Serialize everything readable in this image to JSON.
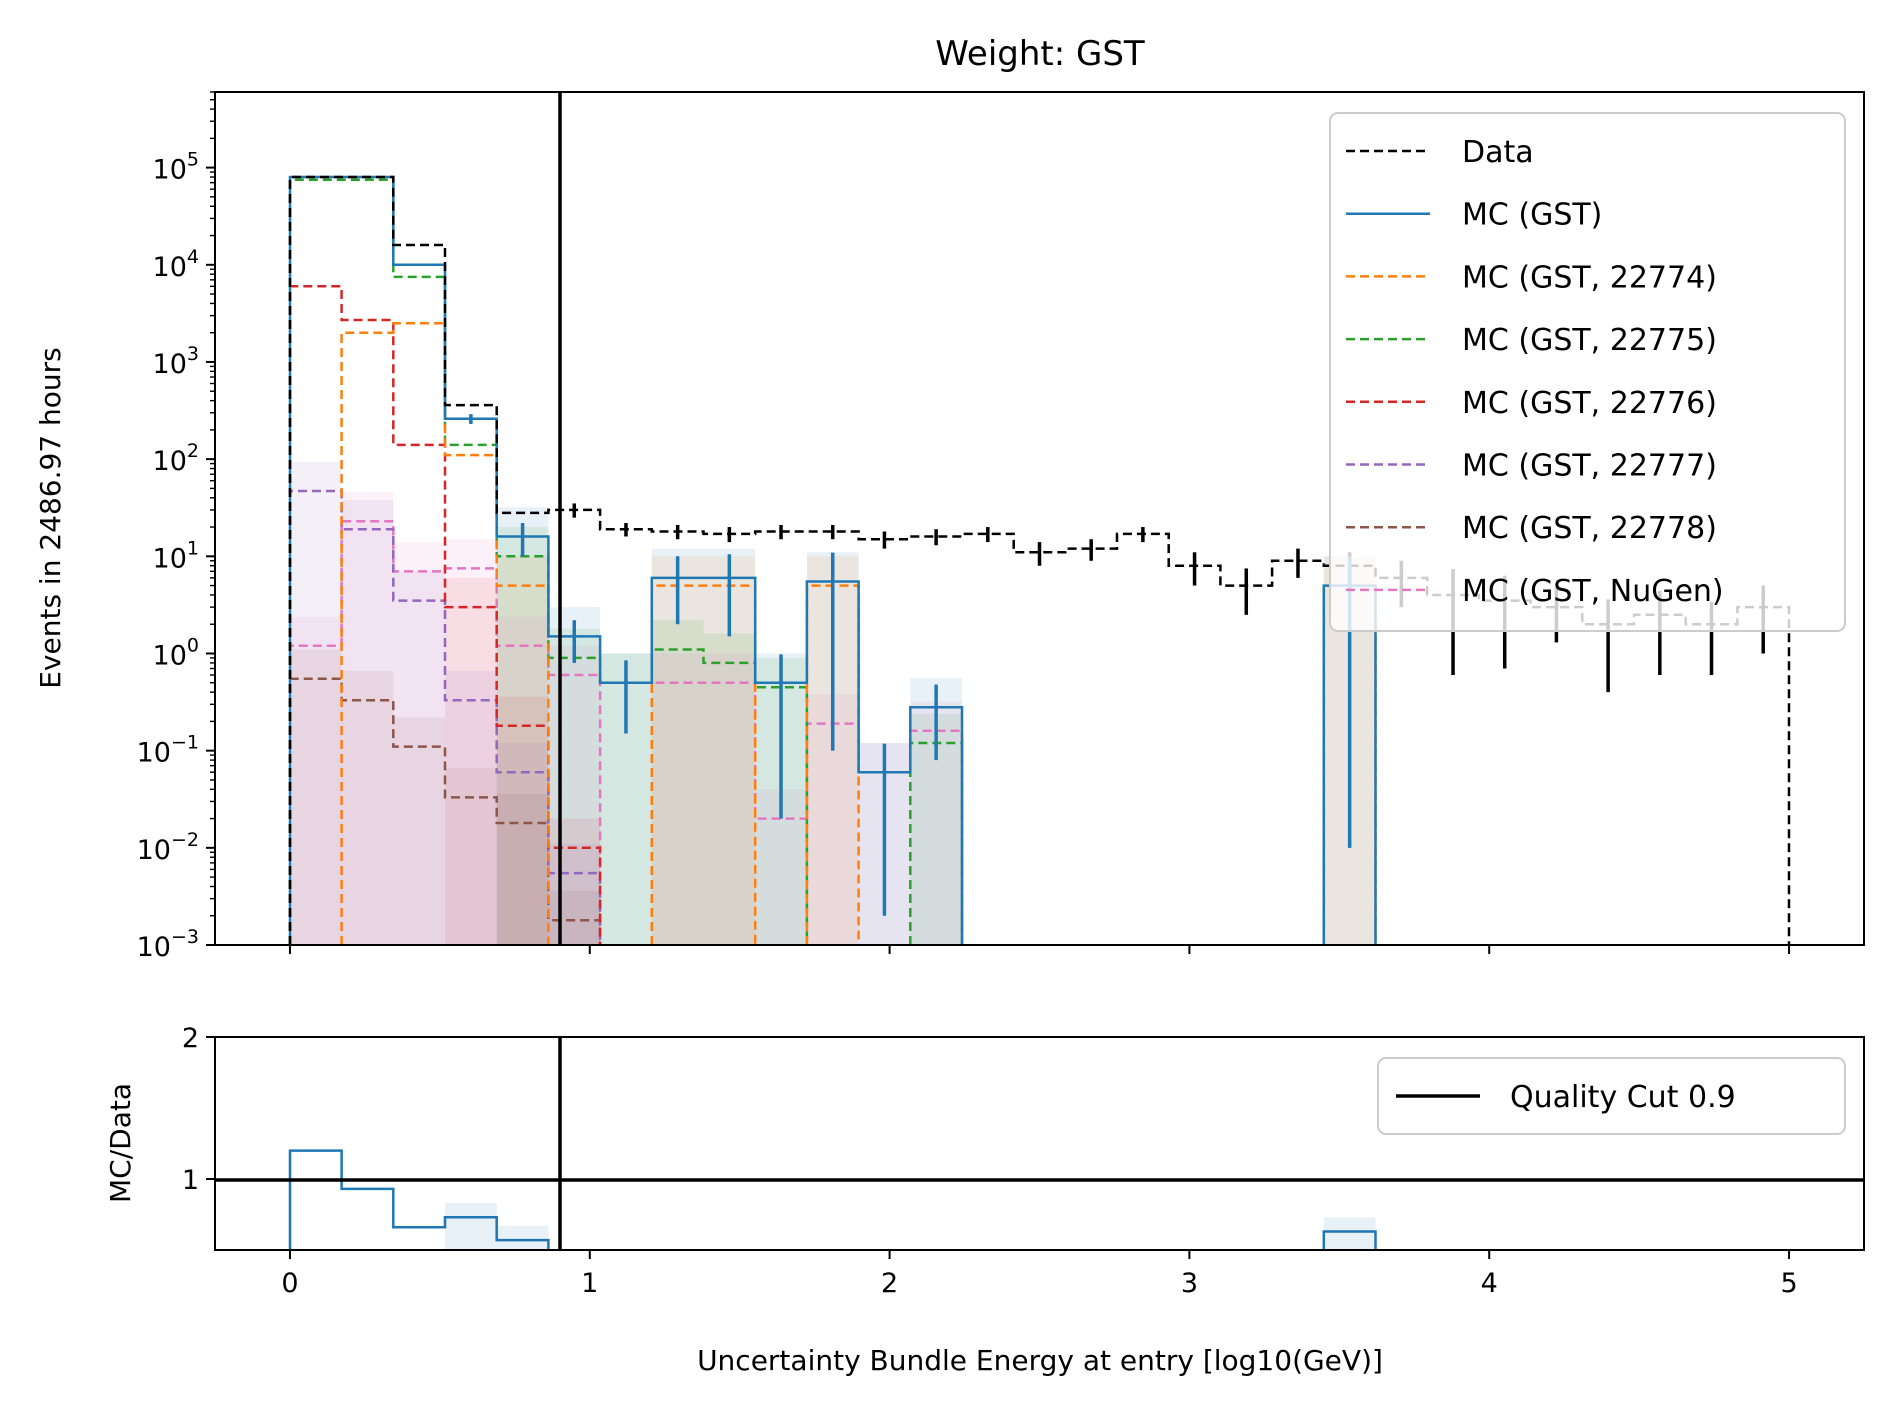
{
  "chart_data": [
    {
      "type": "line",
      "step": true,
      "title": "Weight: GST",
      "xlabel": "",
      "ylabel": "Events in 2486.97 hours",
      "yscale": "log",
      "xlim": [
        -0.25,
        5.25
      ],
      "ylim": [
        0.001,
        600000
      ],
      "y_tick_labels": [
        {
          "value": 0.001,
          "base": "10",
          "exp": "−3"
        },
        {
          "value": 0.01,
          "base": "10",
          "exp": "−2"
        },
        {
          "value": 0.1,
          "base": "10",
          "exp": "−1"
        },
        {
          "value": 1,
          "base": "10",
          "exp": "0"
        },
        {
          "value": 10,
          "base": "10",
          "exp": "1"
        },
        {
          "value": 100,
          "base": "10",
          "exp": "2"
        },
        {
          "value": 1000,
          "base": "10",
          "exp": "3"
        },
        {
          "value": 10000,
          "base": "10",
          "exp": "4"
        },
        {
          "value": 100000,
          "base": "10",
          "exp": "5"
        }
      ],
      "grid": false,
      "legend_position": "top-right",
      "bin_edges": [
        0,
        0.1724,
        0.3448,
        0.5172,
        0.6897,
        0.8621,
        1.0345,
        1.2069,
        1.3793,
        1.5517,
        1.7241,
        1.8966,
        2.069,
        2.2414,
        2.4138,
        2.5862,
        2.7586,
        2.931,
        3.1034,
        3.2759,
        3.4483,
        3.6207,
        3.7931,
        3.9655,
        4.1379,
        4.3103,
        4.4828,
        4.6552,
        4.8276,
        5.0
      ],
      "quality_cut": 0.9,
      "series": [
        {
          "name": "Data",
          "color": "#000000",
          "dash": true,
          "values": [
            80000,
            80000,
            16000,
            360,
            28,
            30,
            19,
            18,
            17,
            18,
            18,
            15,
            16,
            17,
            11,
            12,
            17,
            8,
            5,
            9,
            8,
            6,
            4,
            3.5,
            3,
            2,
            2.5,
            2,
            3
          ],
          "errors": [
            0,
            0,
            0,
            0,
            0,
            5,
            3,
            3,
            3,
            3,
            3,
            3,
            3,
            3,
            3,
            3,
            3,
            3,
            2.5,
            3,
            3,
            3,
            3.4,
            2.8,
            1.7,
            1.6,
            1.9,
            1.4,
            2
          ]
        },
        {
          "name": "MC (GST)",
          "color": "#1f77b4",
          "dash": false,
          "values": [
            80000,
            80000,
            10000,
            260,
            16,
            1.5,
            0.5,
            6,
            6,
            0.5,
            5.5,
            0.06,
            0.28,
            null,
            null,
            null,
            null,
            null,
            null,
            null,
            5,
            null,
            null,
            null,
            null,
            null,
            null,
            null,
            null
          ],
          "errors": [
            0,
            0,
            0,
            30,
            6,
            0.7,
            0.35,
            4,
            4.5,
            0.48,
            5.4,
            0.058,
            0.2,
            0,
            0,
            0,
            0,
            0,
            0,
            0,
            4.99,
            0,
            0,
            0,
            0,
            0,
            0,
            0,
            0
          ]
        },
        {
          "name": "MC (GST, 22774)",
          "color": "#ff7f0e",
          "dash": true,
          "values": [
            null,
            2000,
            2500,
            110,
            5,
            null,
            null,
            5,
            5,
            null,
            5,
            null,
            null,
            null,
            null,
            null,
            null,
            null,
            null,
            null,
            5,
            null,
            null,
            null,
            null,
            null,
            null,
            null,
            null
          ]
        },
        {
          "name": "MC (GST, 22775)",
          "color": "#2ca02c",
          "dash": true,
          "values": [
            75000,
            75000,
            7500,
            140,
            10,
            0.9,
            0.5,
            1.1,
            0.8,
            0.45,
            null,
            null,
            0.12,
            null,
            null,
            null,
            null,
            null,
            null,
            null,
            null,
            null,
            null,
            null,
            null,
            null,
            null,
            null,
            null
          ]
        },
        {
          "name": "MC (GST, 22776)",
          "color": "#d62728",
          "dash": true,
          "values": [
            6000,
            2700,
            140,
            3,
            0.18,
            0.01,
            null,
            null,
            null,
            null,
            null,
            null,
            null,
            null,
            null,
            null,
            null,
            null,
            null,
            null,
            null,
            null,
            null,
            null,
            null,
            null,
            null,
            null,
            null
          ]
        },
        {
          "name": "MC (GST, 22777)",
          "color": "#9467bd",
          "dash": true,
          "values": [
            47,
            19,
            3.5,
            0.33,
            0.06,
            0.0055,
            null,
            null,
            null,
            null,
            null,
            null,
            null,
            null,
            null,
            null,
            null,
            null,
            null,
            null,
            null,
            null,
            null,
            null,
            null,
            null,
            null,
            null,
            null
          ]
        },
        {
          "name": "MC (GST, 22778)",
          "color": "#8c564b",
          "dash": true,
          "values": [
            0.55,
            0.33,
            0.11,
            0.033,
            0.018,
            0.0018,
            null,
            null,
            null,
            null,
            null,
            null,
            null,
            null,
            null,
            null,
            null,
            null,
            null,
            null,
            null,
            null,
            null,
            null,
            null,
            null,
            null,
            null,
            null
          ]
        },
        {
          "name": "MC (GST, NuGen)",
          "color": "#e377c2",
          "dash": true,
          "values": [
            1.2,
            23,
            7,
            7.5,
            1.2,
            0.6,
            null,
            0.5,
            0.5,
            0.02,
            0.19,
            0.06,
            0.16,
            null,
            null,
            null,
            null,
            null,
            null,
            null,
            null,
            null,
            null,
            null,
            null,
            null,
            null,
            null,
            null
          ]
        }
      ]
    },
    {
      "type": "line",
      "step": true,
      "title": "",
      "xlabel": "Uncertainty Bundle Energy at entry [log10(GeV)]",
      "ylabel": "MC/Data",
      "xlim": [
        -0.25,
        5.25
      ],
      "ylim": [
        0.5,
        2
      ],
      "x_ticks": [
        0,
        1,
        2,
        3,
        4,
        5
      ],
      "y_ticks": [
        1,
        2
      ],
      "reference_line": 1,
      "legend_position": "top-right",
      "legend": [
        "Quality Cut 0.9"
      ],
      "series": [
        {
          "name": "MC (GST)",
          "color": "#1f77b4",
          "values": [
            1.2,
            0.93,
            0.66,
            0.73,
            0.57,
            null,
            null,
            null,
            null,
            null,
            null,
            null,
            null,
            null,
            null,
            null,
            null,
            null,
            null,
            null,
            0.63,
            null,
            null,
            null,
            null,
            null,
            null,
            null,
            null
          ]
        }
      ]
    }
  ]
}
